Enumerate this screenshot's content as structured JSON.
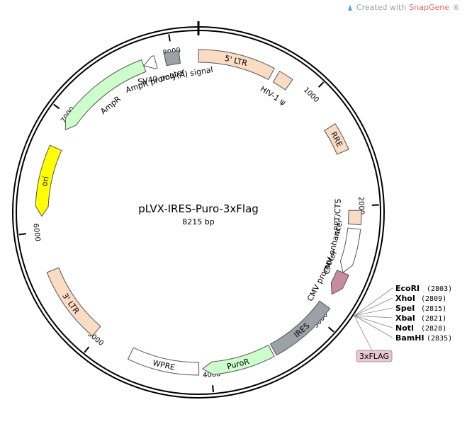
{
  "watermark": {
    "prefix": "Created with ",
    "brand": "SnapGene",
    "suffix": "®"
  },
  "plasmid": {
    "name": "pLVX-IRES-Puro-3xFlag",
    "size_label": "8215 bp",
    "length_bp": 8215
  },
  "ticks": [
    {
      "bp": 1000,
      "label": "1000"
    },
    {
      "bp": 2000,
      "label": "2000"
    },
    {
      "bp": 3000,
      "label": "3000"
    },
    {
      "bp": 4000,
      "label": "4000"
    },
    {
      "bp": 5000,
      "label": "5000"
    },
    {
      "bp": 6000,
      "label": "6000"
    },
    {
      "bp": 7000,
      "label": "7000"
    },
    {
      "bp": 8000,
      "label": "8000"
    }
  ],
  "features": [
    {
      "name": "5' LTR",
      "start": 1,
      "end": 634,
      "color": "#f9dcc3",
      "label_inside": true
    },
    {
      "name": "HIV-1 ψ",
      "start": 681,
      "end": 806,
      "color": "#f9dcc3",
      "label_inside": false
    },
    {
      "name": "RRE",
      "start": 1301,
      "end": 1534,
      "color": "#f9dcc3",
      "label_inside": true
    },
    {
      "name": "cPPT/CTS",
      "start": 2037,
      "end": 2154,
      "color": "#f9dcc3",
      "label_inside": false
    },
    {
      "name": "CMV enhancer",
      "start": 2190,
      "end": 2570,
      "color": "#ffffff",
      "label_inside": false,
      "arrow": true
    },
    {
      "name": "CMV promoter",
      "start": 2571,
      "end": 2774,
      "color": "#c88a9f",
      "label_inside": false,
      "arrow": true
    },
    {
      "name": "IRES",
      "start": 2880,
      "end": 3454,
      "color": "#9aa1a7",
      "label_inside": true
    },
    {
      "name": "PuroR",
      "start": 3474,
      "end": 4073,
      "color": "#ccffcc",
      "label_inside": true,
      "arrow": true
    },
    {
      "name": "WPRE",
      "start": 4104,
      "end": 4692,
      "color": "#ffffff",
      "label_inside": true
    },
    {
      "name": "3' LTR",
      "start": 5034,
      "end": 5667,
      "color": "#f9dcc3",
      "label_inside": true
    },
    {
      "name": "ori",
      "start": 6129,
      "end": 6717,
      "color": "#ffff00",
      "label_inside": true,
      "arrow": true,
      "reverse": true
    },
    {
      "name": "AmpR",
      "start": 6888,
      "end": 7748,
      "color": "#ccffcc",
      "label_inside": false,
      "arrow": true,
      "reverse": true
    },
    {
      "name": "AmpR promoter",
      "start": 7749,
      "end": 7853,
      "color": "#ffffff",
      "label_inside": false,
      "arrow": true,
      "reverse": true
    },
    {
      "name": "SV40 poly(A) signal",
      "start": 7936,
      "end": 8057,
      "color": "#9aa1a7",
      "label_inside": false
    }
  ],
  "sites": [
    {
      "name": "EcoRI",
      "pos": "(2803)"
    },
    {
      "name": "XhoI",
      "pos": "(2809)"
    },
    {
      "name": "SpeI",
      "pos": "(2815)"
    },
    {
      "name": "XbaI",
      "pos": "(2821)"
    },
    {
      "name": "NotI",
      "pos": "(2828)"
    },
    {
      "name": "BamHI",
      "pos": "(2835)"
    }
  ],
  "tag_label": "3xFLAG",
  "colors": {
    "tag": "#e8c9d3",
    "ring": "#000000"
  }
}
